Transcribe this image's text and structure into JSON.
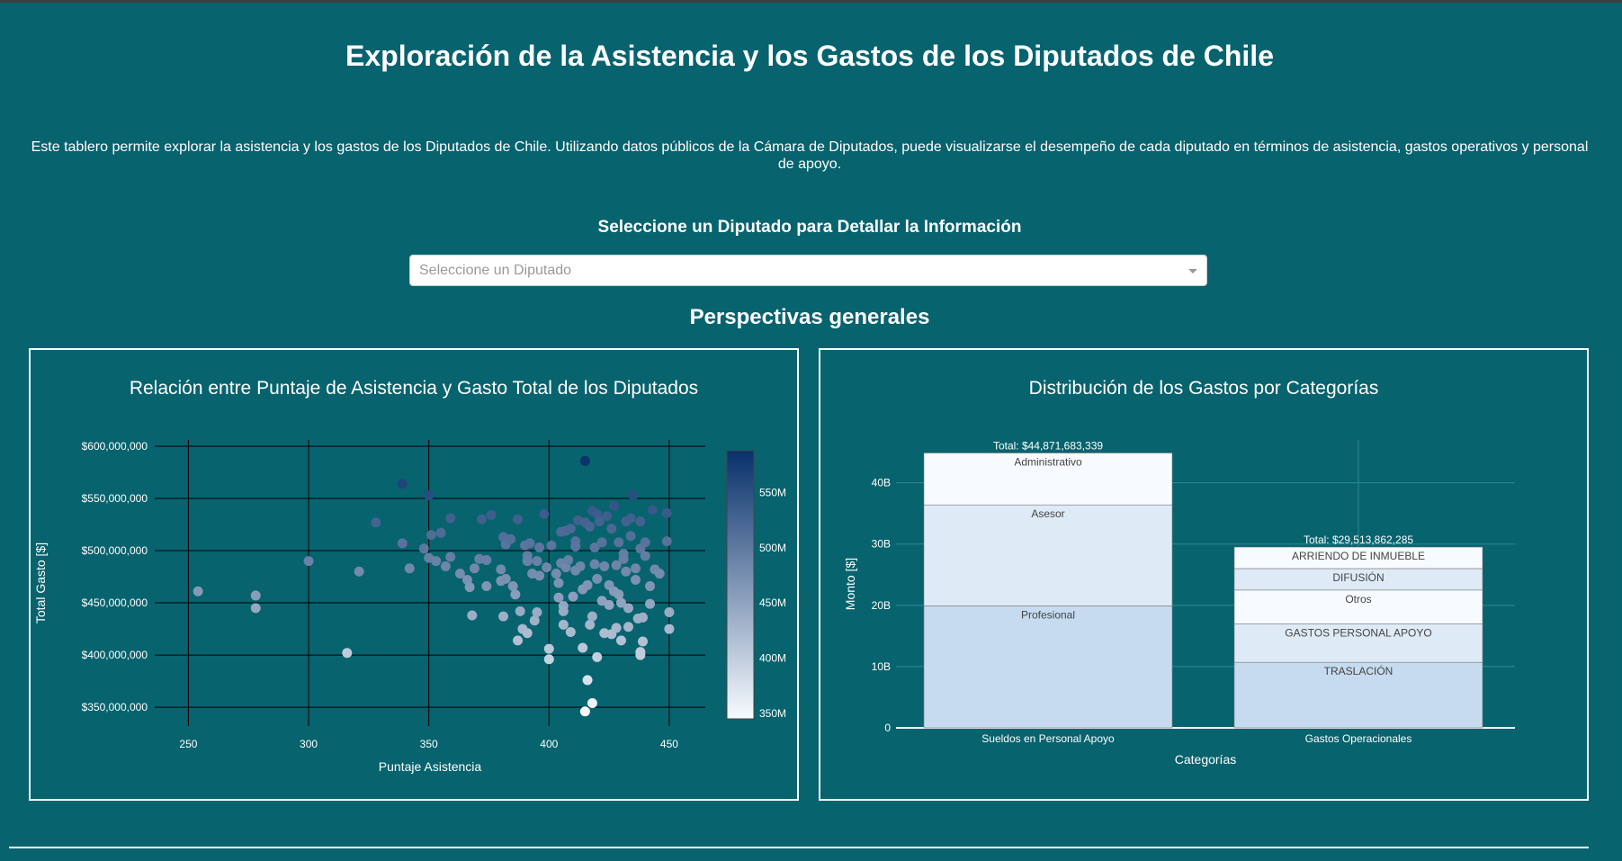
{
  "header": {
    "title": "Exploración de la Asistencia y los Gastos de los Diputados de Chile",
    "description": "Este tablero permite explorar la asistencia y los gastos de los Diputados de Chile. Utilizando datos públicos de la Cámara de Diputados, puede visualizarse el desempeño de cada diputado en términos de asistencia, gastos operativos y personal de apoyo."
  },
  "selector": {
    "label": "Seleccione un Diputado para Detallar la Información",
    "placeholder": "Seleccione un Diputado"
  },
  "section_title": "Perspectivas generales",
  "colors": {
    "background": "#07636e",
    "scatter_scale": [
      "#f7fbff",
      "#08306b"
    ],
    "bar_segment": [
      "#c6dbef",
      "#deebf7",
      "#f7fbff"
    ]
  },
  "chart_data": [
    {
      "type": "scatter",
      "title": "Relación entre Puntaje de Asistencia y Gasto Total de los Diputados",
      "xlabel": "Puntaje Asistencia",
      "ylabel": "Total Gasto [$]",
      "xlim": [
        236,
        465
      ],
      "ylim": [
        332000000,
        606000000
      ],
      "xticks": [
        250,
        300,
        350,
        400,
        450
      ],
      "xtick_labels": [
        "250",
        "300",
        "350",
        "400",
        "450"
      ],
      "yticks": [
        350000000,
        400000000,
        450000000,
        500000000,
        550000000,
        600000000
      ],
      "ytick_labels": [
        "$350,000,000",
        "$400,000,000",
        "$450,000,000",
        "$500,000,000",
        "$550,000,000",
        "$600,000,000"
      ],
      "colorbar": {
        "min": 345000000,
        "max": 588000000,
        "ticks": [
          350000000,
          400000000,
          450000000,
          500000000,
          550000000
        ],
        "tick_labels": [
          "350M",
          "400M",
          "450M",
          "500M",
          "550M"
        ]
      },
      "points": [
        [
          254,
          461000000
        ],
        [
          278,
          457000000
        ],
        [
          278,
          445000000
        ],
        [
          300,
          490000000
        ],
        [
          316,
          402000000
        ],
        [
          321,
          480000000
        ],
        [
          328,
          527000000
        ],
        [
          339,
          564000000
        ],
        [
          339,
          507000000
        ],
        [
          342,
          483000000
        ],
        [
          348,
          502000000
        ],
        [
          350,
          553000000
        ],
        [
          350,
          493000000
        ],
        [
          351,
          515000000
        ],
        [
          353,
          490000000
        ],
        [
          355,
          517000000
        ],
        [
          357,
          485000000
        ],
        [
          359,
          531000000
        ],
        [
          359,
          494000000
        ],
        [
          363,
          478000000
        ],
        [
          366,
          472000000
        ],
        [
          367,
          465000000
        ],
        [
          368,
          438000000
        ],
        [
          369,
          483000000
        ],
        [
          371,
          492000000
        ],
        [
          372,
          530000000
        ],
        [
          374,
          466000000
        ],
        [
          374,
          491000000
        ],
        [
          376,
          534000000
        ],
        [
          380,
          471000000
        ],
        [
          380,
          482000000
        ],
        [
          381,
          513000000
        ],
        [
          381,
          437000000
        ],
        [
          382,
          473000000
        ],
        [
          382,
          506000000
        ],
        [
          384,
          511000000
        ],
        [
          385,
          466000000
        ],
        [
          386,
          458000000
        ],
        [
          387,
          414000000
        ],
        [
          387,
          530000000
        ],
        [
          388,
          442000000
        ],
        [
          389,
          425000000
        ],
        [
          390,
          505000000
        ],
        [
          391,
          495000000
        ],
        [
          391,
          490000000
        ],
        [
          391,
          421000000
        ],
        [
          392,
          507000000
        ],
        [
          393,
          478000000
        ],
        [
          394,
          433000000
        ],
        [
          395,
          441000000
        ],
        [
          395,
          490000000
        ],
        [
          396,
          476000000
        ],
        [
          396,
          503000000
        ],
        [
          398,
          535000000
        ],
        [
          399,
          484000000
        ],
        [
          400,
          406000000
        ],
        [
          400,
          396000000
        ],
        [
          401,
          505000000
        ],
        [
          403,
          478000000
        ],
        [
          404,
          469000000
        ],
        [
          404,
          455000000
        ],
        [
          405,
          518000000
        ],
        [
          405,
          488000000
        ],
        [
          406,
          447000000
        ],
        [
          406,
          442000000
        ],
        [
          406,
          429000000
        ],
        [
          407,
          519000000
        ],
        [
          407,
          484000000
        ],
        [
          408,
          491000000
        ],
        [
          409,
          521000000
        ],
        [
          409,
          422000000
        ],
        [
          410,
          456000000
        ],
        [
          411,
          509000000
        ],
        [
          411,
          504000000
        ],
        [
          411,
          481000000
        ],
        [
          412,
          529000000
        ],
        [
          413,
          485000000
        ],
        [
          414,
          463000000
        ],
        [
          414,
          407000000
        ],
        [
          415,
          527000000
        ],
        [
          415,
          586000000
        ],
        [
          415,
          346000000
        ],
        [
          416,
          467000000
        ],
        [
          416,
          376000000
        ],
        [
          417,
          523000000
        ],
        [
          417,
          429000000
        ],
        [
          418,
          538000000
        ],
        [
          418,
          354000000
        ],
        [
          418,
          437000000
        ],
        [
          419,
          503000000
        ],
        [
          419,
          487000000
        ],
        [
          420,
          535000000
        ],
        [
          420,
          473000000
        ],
        [
          420,
          398000000
        ],
        [
          421,
          528000000
        ],
        [
          422,
          452000000
        ],
        [
          422,
          508000000
        ],
        [
          423,
          421000000
        ],
        [
          423,
          485000000
        ],
        [
          424,
          533000000
        ],
        [
          425,
          467000000
        ],
        [
          425,
          448000000
        ],
        [
          426,
          521000000
        ],
        [
          426,
          420000000
        ],
        [
          427,
          543000000
        ],
        [
          427,
          461000000
        ],
        [
          428,
          486000000
        ],
        [
          428,
          426000000
        ],
        [
          429,
          508000000
        ],
        [
          429,
          458000000
        ],
        [
          430,
          450000000
        ],
        [
          430,
          414000000
        ],
        [
          431,
          497000000
        ],
        [
          431,
          492000000
        ],
        [
          432,
          528000000
        ],
        [
          432,
          480000000
        ],
        [
          433,
          445000000
        ],
        [
          433,
          427000000
        ],
        [
          434,
          514000000
        ],
        [
          434,
          531000000
        ],
        [
          435,
          553000000
        ],
        [
          436,
          483000000
        ],
        [
          436,
          472000000
        ],
        [
          437,
          435000000
        ],
        [
          438,
          528000000
        ],
        [
          438,
          502000000
        ],
        [
          438,
          403000000
        ],
        [
          438,
          400000000
        ],
        [
          439,
          436000000
        ],
        [
          439,
          413000000
        ],
        [
          440,
          495000000
        ],
        [
          440,
          508000000
        ],
        [
          442,
          449000000
        ],
        [
          442,
          466000000
        ],
        [
          443,
          539000000
        ],
        [
          444,
          482000000
        ],
        [
          446,
          478000000
        ],
        [
          449,
          536000000
        ],
        [
          449,
          509000000
        ],
        [
          450,
          441000000
        ],
        [
          450,
          425000000
        ]
      ]
    },
    {
      "type": "bar",
      "title": "Distribución de los Gastos por Categorías",
      "xlabel": "Categorías",
      "ylabel": "Monto [$]",
      "ylim": [
        0,
        47000000000
      ],
      "yticks": [
        0,
        10000000000,
        20000000000,
        30000000000,
        40000000000
      ],
      "ytick_labels": [
        "0",
        "10B",
        "20B",
        "30B",
        "40B"
      ],
      "categories": [
        "Sueldos en Personal Apoyo",
        "Gastos Operacionales"
      ],
      "totals": [
        "Total: $44,871,683,339",
        "Total: $29,513,862,285"
      ],
      "stacks": [
        [
          {
            "name": "Profesional",
            "value": 19900000000
          },
          {
            "name": "Asesor",
            "value": 16500000000
          },
          {
            "name": "Administrativo",
            "value": 8471683339
          }
        ],
        [
          {
            "name": "TRASLACIÓN",
            "value": 10700000000
          },
          {
            "name": "GASTOS PERSONAL APOYO",
            "value": 6300000000
          },
          {
            "name": "Otros",
            "value": 5500000000
          },
          {
            "name": "DIFUSIÓN",
            "value": 3500000000
          },
          {
            "name": "ARRIENDO DE INMUEBLE",
            "value": 3513862285
          }
        ]
      ]
    }
  ]
}
